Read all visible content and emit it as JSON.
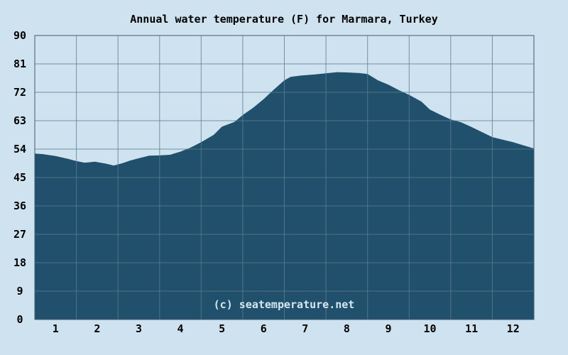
{
  "title": "Annual water temperature (F) for Marmara, Turkey",
  "watermark": "(c) seatemperature.net",
  "colors": {
    "background": "#cfe2ef",
    "area_fill": "#20506b",
    "gridline": "#5b7d92",
    "plot_border": "#3c5f74",
    "label_text": "#000000",
    "watermark_text": "#d6e6f1"
  },
  "chart_data": {
    "type": "area",
    "title": "Annual water temperature (F) for Marmara, Turkey",
    "series_name": "Water temperature (F)",
    "grid": true,
    "legend": false,
    "ylim": [
      0,
      90
    ],
    "y_tick_step": 9,
    "y_tick_labels": [
      90,
      81,
      72,
      63,
      54,
      45,
      36,
      27,
      18,
      9,
      0
    ],
    "x_tick_labels": [
      "1",
      "2",
      "3",
      "4",
      "5",
      "6",
      "7",
      "8",
      "9",
      "10",
      "11",
      "12"
    ],
    "categories": [
      "1",
      "2",
      "3",
      "4",
      "5",
      "6",
      "7",
      "8",
      "9",
      "10",
      "11",
      "12"
    ],
    "monthly_values": [
      51.8,
      50.2,
      51.1,
      53.2,
      61.1,
      69.8,
      77.3,
      78.3,
      74.4,
      66.5,
      61.0,
      56.2
    ],
    "curve_samples": [
      [
        0.0,
        52.6
      ],
      [
        0.2,
        52.4
      ],
      [
        0.5,
        51.8
      ],
      [
        0.8,
        50.9
      ],
      [
        1.0,
        50.2
      ],
      [
        1.2,
        49.7
      ],
      [
        1.45,
        50.0
      ],
      [
        1.7,
        49.4
      ],
      [
        1.9,
        48.8
      ],
      [
        2.1,
        49.5
      ],
      [
        2.3,
        50.4
      ],
      [
        2.5,
        51.1
      ],
      [
        2.75,
        51.9
      ],
      [
        3.0,
        52.0
      ],
      [
        3.25,
        52.2
      ],
      [
        3.5,
        53.2
      ],
      [
        3.75,
        54.5
      ],
      [
        4.0,
        56.2
      ],
      [
        4.3,
        58.5
      ],
      [
        4.5,
        61.1
      ],
      [
        4.8,
        62.6
      ],
      [
        5.0,
        64.8
      ],
      [
        5.25,
        67.1
      ],
      [
        5.5,
        69.8
      ],
      [
        5.75,
        72.9
      ],
      [
        6.0,
        75.8
      ],
      [
        6.15,
        76.9
      ],
      [
        6.4,
        77.3
      ],
      [
        6.75,
        77.7
      ],
      [
        7.0,
        78.0
      ],
      [
        7.27,
        78.4
      ],
      [
        7.5,
        78.3
      ],
      [
        7.8,
        78.1
      ],
      [
        8.0,
        77.8
      ],
      [
        8.25,
        75.8
      ],
      [
        8.5,
        74.4
      ],
      [
        8.75,
        72.7
      ],
      [
        9.0,
        71.2
      ],
      [
        9.3,
        69.0
      ],
      [
        9.5,
        66.5
      ],
      [
        9.75,
        64.9
      ],
      [
        10.0,
        63.4
      ],
      [
        10.25,
        62.5
      ],
      [
        10.5,
        61.0
      ],
      [
        10.75,
        59.4
      ],
      [
        11.0,
        57.8
      ],
      [
        11.25,
        57.0
      ],
      [
        11.5,
        56.2
      ],
      [
        11.75,
        55.2
      ],
      [
        12.0,
        54.2
      ]
    ]
  }
}
